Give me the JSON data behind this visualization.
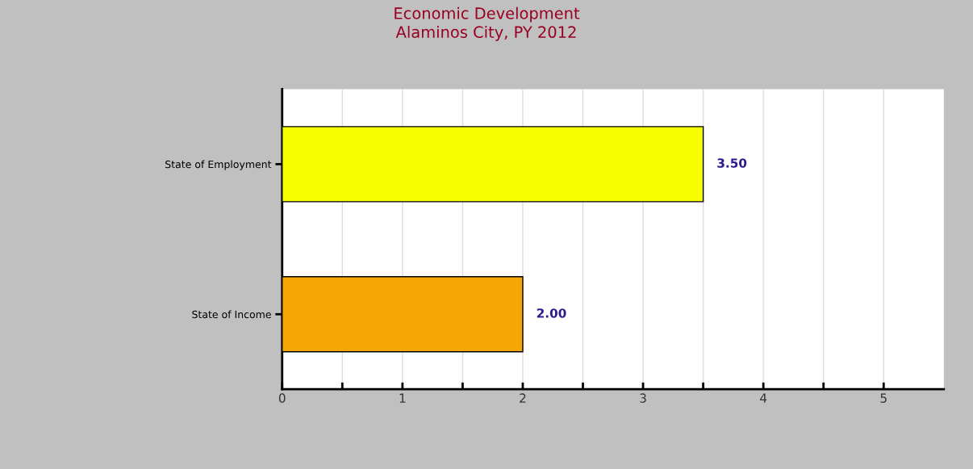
{
  "chart_data": {
    "type": "bar",
    "orientation": "horizontal",
    "title": "Economic Development\nAlaminos City, PY 2012",
    "categories": [
      "State of Employment",
      "State of Income"
    ],
    "values": [
      3.5,
      2.0
    ],
    "colors": [
      "#f5ff00",
      "#f5a805"
    ],
    "value_labels": [
      "3.50",
      "2.00"
    ],
    "xlim": [
      0,
      5.5
    ],
    "xticks": [
      0,
      {
        "value": 0.5,
        "label": null
      },
      1,
      {
        "value": 1.5,
        "label": null
      },
      2,
      {
        "value": 2.5,
        "label": null
      },
      3,
      {
        "value": 3.5,
        "label": null
      },
      4,
      {
        "value": 4.5,
        "label": null
      },
      5
    ],
    "grid": "x",
    "legend": false
  }
}
